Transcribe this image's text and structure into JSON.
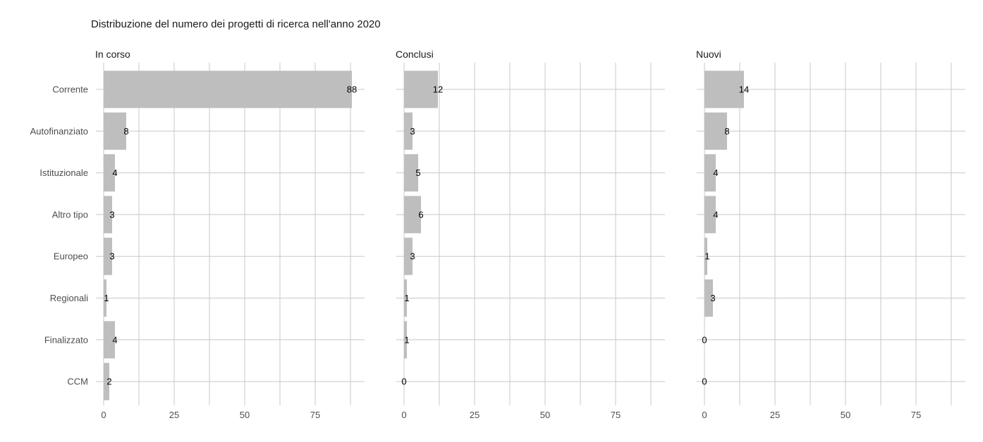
{
  "chart_data": {
    "type": "bar",
    "orientation": "horizontal",
    "title": "Distribuzione del numero dei progetti di ricerca nell'anno 2020",
    "categories": [
      "Corrente",
      "Autofinanziato",
      "Istituzionale",
      "Altro tipo",
      "Europeo",
      "Regionali",
      "Finalizzato",
      "CCM"
    ],
    "facets": [
      {
        "name": "In corso",
        "values": [
          88,
          8,
          4,
          3,
          3,
          1,
          4,
          2
        ]
      },
      {
        "name": "Conclusi",
        "values": [
          12,
          3,
          5,
          6,
          3,
          1,
          1,
          0
        ]
      },
      {
        "name": "Nuovi",
        "values": [
          14,
          8,
          4,
          4,
          1,
          3,
          0,
          0
        ]
      }
    ],
    "xticks": [
      0,
      25,
      50,
      75
    ],
    "xlim": [
      0,
      92
    ],
    "bar_color": "#bebebe",
    "grid_color": "#c8c8c8",
    "grid": true,
    "legend": "none",
    "xlabel": "",
    "ylabel": ""
  }
}
